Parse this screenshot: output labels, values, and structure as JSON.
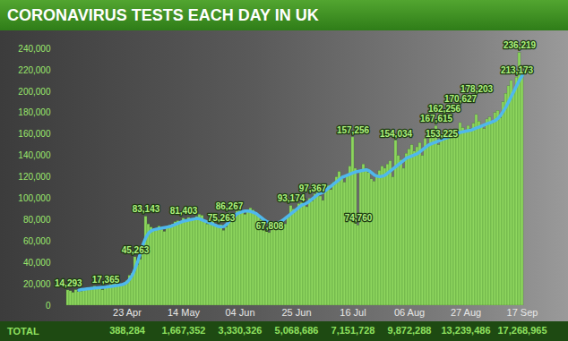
{
  "chart_data": {
    "type": "bar",
    "title": "CORONAVIRUS TESTS EACH DAY IN UK",
    "categories": [
      null,
      null,
      null,
      null,
      null,
      null,
      null,
      null,
      null,
      null,
      null,
      null,
      null,
      null,
      null,
      null,
      null,
      null,
      null,
      null,
      null,
      null,
      "23 Apr",
      null,
      null,
      null,
      null,
      null,
      null,
      null,
      null,
      null,
      null,
      null,
      null,
      null,
      null,
      null,
      null,
      null,
      null,
      null,
      null,
      "14 May",
      null,
      null,
      null,
      null,
      null,
      null,
      null,
      null,
      null,
      null,
      null,
      null,
      null,
      null,
      null,
      null,
      null,
      null,
      null,
      null,
      "04 Jun",
      null,
      null,
      null,
      null,
      null,
      null,
      null,
      null,
      null,
      null,
      null,
      null,
      null,
      null,
      null,
      null,
      null,
      null,
      null,
      null,
      "25 Jun",
      null,
      null,
      null,
      null,
      null,
      null,
      null,
      null,
      null,
      null,
      null,
      null,
      null,
      null,
      null,
      null,
      null,
      null,
      null,
      null,
      "16 Jul",
      null,
      null,
      null,
      null,
      null,
      null,
      null,
      null,
      null,
      null,
      null,
      null,
      null,
      null,
      null,
      null,
      null,
      null,
      null,
      null,
      "06 Aug",
      null,
      null,
      null,
      null,
      null,
      null,
      null,
      null,
      null,
      null,
      null,
      null,
      null,
      null,
      null,
      null,
      null,
      null,
      null,
      null,
      "27 Aug",
      null,
      null,
      null,
      null,
      null,
      null,
      null,
      null,
      null,
      null,
      null,
      null,
      null,
      null,
      null,
      null,
      null,
      null,
      null,
      null,
      "17 Sep"
    ],
    "series": [
      {
        "type": "bar",
        "color": "#8ed65e",
        "values": [
          14293,
          13500,
          12000,
          14500,
          12800,
          13200,
          14000,
          15500,
          16000,
          17000,
          18000,
          16500,
          15500,
          14500,
          17365,
          18500,
          19500,
          20000,
          21000,
          19000,
          18500,
          19000,
          23000,
          28000,
          30000,
          45263,
          38000,
          43000,
          52000,
          83143,
          76000,
          73000,
          70000,
          72000,
          74000,
          71000,
          69000,
          73000,
          75000,
          76000,
          78000,
          79000,
          77000,
          81403,
          80000,
          82000,
          79000,
          81000,
          83000,
          85000,
          84000,
          78000,
          76000,
          80000,
          79000,
          76000,
          74000,
          75263,
          70000,
          73000,
          86267,
          84000,
          82000,
          88000,
          90000,
          87000,
          85000,
          88000,
          91000,
          89000,
          86000,
          84000,
          80000,
          70000,
          69000,
          67808,
          72000,
          78000,
          76000,
          74000,
          80000,
          76000,
          82000,
          93174,
          90000,
          88000,
          95000,
          96000,
          94000,
          92000,
          100000,
          97367,
          104000,
          106000,
          102000,
          98000,
          110000,
          112000,
          108000,
          115000,
          120000,
          125000,
          118000,
          115000,
          122000,
          130000,
          157256,
          128000,
          74760,
          126000,
          132000,
          128000,
          124000,
          118000,
          116000,
          122000,
          126000,
          130000,
          128000,
          132000,
          135000,
          120000,
          154034,
          140000,
          136000,
          128000,
          142000,
          146000,
          150000,
          144000,
          148000,
          152000,
          140000,
          156000,
          150000,
          158000,
          160000,
          167615,
          150000,
          153225,
          162256,
          158000,
          156000,
          162000,
          164000,
          160000,
          170627,
          166000,
          162000,
          168000,
          165000,
          170000,
          178203,
          172000,
          168000,
          165000,
          174000,
          176000,
          170000,
          180000,
          182000,
          175000,
          190000,
          198000,
          205000,
          210000,
          200000,
          213173,
          236219,
          218000
        ],
        "value_labels": [
          "14,293",
          null,
          null,
          null,
          null,
          null,
          null,
          null,
          null,
          null,
          null,
          null,
          null,
          null,
          "17,365",
          null,
          null,
          null,
          null,
          null,
          null,
          null,
          null,
          null,
          null,
          "45,263",
          null,
          null,
          null,
          "83,143",
          null,
          null,
          null,
          null,
          null,
          null,
          null,
          null,
          null,
          null,
          null,
          null,
          null,
          "81,403",
          null,
          null,
          null,
          null,
          null,
          null,
          null,
          null,
          null,
          null,
          null,
          null,
          null,
          "75,263",
          null,
          null,
          "86,267",
          null,
          null,
          null,
          null,
          null,
          null,
          null,
          null,
          null,
          null,
          null,
          null,
          null,
          null,
          "67,808",
          null,
          null,
          null,
          null,
          null,
          null,
          null,
          "93,174",
          null,
          null,
          null,
          null,
          null,
          null,
          null,
          "97,367",
          null,
          null,
          null,
          null,
          null,
          null,
          null,
          null,
          null,
          null,
          null,
          null,
          null,
          null,
          "157,256",
          null,
          "74,760",
          null,
          null,
          null,
          null,
          null,
          null,
          null,
          null,
          null,
          null,
          null,
          null,
          null,
          "154,034",
          null,
          null,
          null,
          null,
          null,
          null,
          null,
          null,
          null,
          null,
          null,
          null,
          null,
          null,
          "167,615",
          null,
          "153,225",
          "162,256",
          null,
          null,
          null,
          null,
          null,
          "170,627",
          null,
          null,
          null,
          null,
          null,
          "178,203",
          null,
          null,
          null,
          null,
          null,
          null,
          null,
          null,
          null,
          null,
          null,
          null,
          null,
          null,
          "213,173",
          "236,219",
          null
        ]
      },
      {
        "type": "line",
        "color": "#4fb8ec",
        "values": [
          null,
          null,
          null,
          null,
          14500,
          15000,
          15300,
          15600,
          15900,
          16200,
          16500,
          16800,
          17000,
          17200,
          17400,
          17700,
          18000,
          18400,
          18800,
          19200,
          19600,
          20500,
          22000,
          25000,
          29000,
          35000,
          42000,
          50000,
          58000,
          64000,
          68000,
          70000,
          71000,
          71500,
          72000,
          72500,
          73000,
          73500,
          74000,
          75000,
          76000,
          77000,
          78000,
          79000,
          79500,
          80000,
          80500,
          81000,
          81500,
          81000,
          80000,
          79000,
          78000,
          77000,
          76000,
          75000,
          74000,
          73500,
          74000,
          76000,
          79000,
          82000,
          84000,
          86000,
          87000,
          88000,
          88500,
          88500,
          88000,
          87000,
          86000,
          84000,
          82000,
          80000,
          78500,
          77500,
          77000,
          76500,
          77000,
          78500,
          80000,
          82000,
          84000,
          86000,
          88000,
          90000,
          92000,
          94000,
          95000,
          96000,
          98000,
          100000,
          102000,
          104000,
          105000,
          106000,
          108000,
          110000,
          112000,
          114000,
          116000,
          118000,
          120000,
          121000,
          122000,
          123000,
          124000,
          125000,
          125500,
          126000,
          126500,
          127000,
          126000,
          124000,
          122000,
          121000,
          120500,
          121000,
          122000,
          124000,
          126000,
          128000,
          130000,
          132000,
          134000,
          136000,
          138000,
          139000,
          140000,
          141000,
          142000,
          144000,
          146000,
          148000,
          150000,
          151000,
          152000,
          153000,
          154000,
          155000,
          156000,
          157000,
          158000,
          159000,
          160000,
          161000,
          162000,
          162500,
          163000,
          163500,
          164000,
          165000,
          166000,
          167000,
          168000,
          169000,
          170000,
          171000,
          172000,
          173000,
          175000,
          178000,
          182000,
          186000,
          191000,
          196000,
          201000,
          206000,
          211000,
          215000
        ]
      }
    ],
    "ylim": [
      0,
      240000
    ],
    "yticks": [
      0,
      {
        "value": 20000,
        "label": "20,000"
      },
      {
        "value": 40000,
        "label": "40,000"
      },
      {
        "value": 60000,
        "label": "60,000"
      },
      {
        "value": 80000,
        "label": "80,000"
      },
      {
        "value": 100000,
        "label": "100,000"
      },
      {
        "value": 120000,
        "label": "120,000"
      },
      {
        "value": 140000,
        "label": "140,000"
      },
      {
        "value": 160000,
        "label": "160,000"
      },
      {
        "value": 180000,
        "label": "180,000"
      },
      {
        "value": 200000,
        "label": "200,000"
      },
      {
        "value": 220000,
        "label": "220,000"
      },
      {
        "value": 240000,
        "label": "240,000"
      }
    ],
    "grid": false,
    "data_labels": true,
    "totals": {
      "label": "TOTAL",
      "categories": [
        "23 Apr",
        "14 May",
        "04 Jun",
        "25 Jun",
        "16 Jul",
        "06 Aug",
        "27 Aug",
        "17 Sep"
      ],
      "values": [
        388284,
        1667352,
        3330326,
        5068686,
        7151728,
        9872288,
        13239486,
        17268965
      ],
      "value_labels": [
        "388,284",
        "1,667,352",
        "3,330,326",
        "5,068,686",
        "7,151,728",
        "9,872,288",
        "13,239,486",
        "17,268,965"
      ]
    }
  }
}
